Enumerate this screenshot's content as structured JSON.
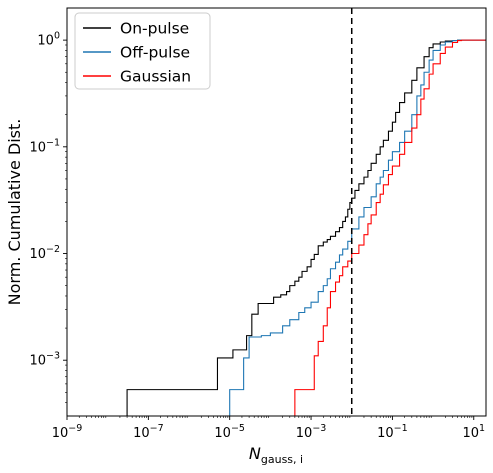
{
  "chart_data": {
    "type": "line",
    "ylabel": "Norm. Cumulative Dist.",
    "xlabel_main": "N",
    "xlabel_sub": "gauss, i",
    "xscale": "log",
    "yscale": "log",
    "xlim": [
      1e-09,
      20
    ],
    "ylim": [
      0.0003,
      2.0
    ],
    "x_ticks": [
      {
        "value": 1e-09,
        "base": "10",
        "exp": "−9"
      },
      {
        "value": 1e-07,
        "base": "10",
        "exp": "−7"
      },
      {
        "value": 1e-05,
        "base": "10",
        "exp": "−5"
      },
      {
        "value": 0.001,
        "base": "10",
        "exp": "−3"
      },
      {
        "value": 0.1,
        "base": "10",
        "exp": "−1"
      },
      {
        "value": 10,
        "base": "10",
        "exp": "1"
      }
    ],
    "y_ticks": [
      {
        "value": 0.001,
        "base": "10",
        "exp": "−3"
      },
      {
        "value": 0.01,
        "base": "10",
        "exp": "−2"
      },
      {
        "value": 0.1,
        "base": "10",
        "exp": "−1"
      },
      {
        "value": 1,
        "base": "10",
        "exp": "0"
      }
    ],
    "threshold_line": {
      "x": 0.01,
      "style": "dashed",
      "color": "#000000"
    },
    "legend": {
      "position": "top-left"
    },
    "series": [
      {
        "name": "On-pulse",
        "color": "#000000",
        "x": [
          3e-08,
          5e-06,
          1.2e-05,
          2.6e-05,
          3.5e-05,
          5e-05,
          8e-05,
          0.00012,
          0.00018,
          0.00025,
          0.0003,
          0.0004,
          0.0005,
          0.0006,
          0.0008,
          0.001,
          0.0012,
          0.0015,
          0.002,
          0.0025,
          0.003,
          0.004,
          0.005,
          0.006,
          0.007,
          0.008,
          0.009,
          0.01,
          0.012,
          0.015,
          0.02,
          0.025,
          0.03,
          0.04,
          0.05,
          0.06,
          0.08,
          0.1,
          0.12,
          0.15,
          0.2,
          0.3,
          0.4,
          0.6,
          0.8,
          1.0,
          1.5,
          2.0,
          3.0,
          4.0
        ],
        "y": [
          0.00053,
          0.00105,
          0.00125,
          0.0017,
          0.0027,
          0.0034,
          0.0034,
          0.0039,
          0.0041,
          0.0044,
          0.005,
          0.0055,
          0.006,
          0.0068,
          0.0075,
          0.0088,
          0.0098,
          0.0118,
          0.0128,
          0.0135,
          0.0145,
          0.016,
          0.0175,
          0.02,
          0.022,
          0.026,
          0.03,
          0.033,
          0.039,
          0.045,
          0.052,
          0.06,
          0.07,
          0.085,
          0.1,
          0.115,
          0.14,
          0.17,
          0.21,
          0.26,
          0.32,
          0.42,
          0.55,
          0.7,
          0.85,
          0.92,
          0.96,
          0.98,
          0.99,
          1.0
        ]
      },
      {
        "name": "Off-pulse",
        "color": "#1f77b4",
        "x": [
          1e-05,
          2.2e-05,
          3e-05,
          6e-05,
          0.0001,
          0.0002,
          0.0003,
          0.0005,
          0.0007,
          0.001,
          0.0015,
          0.002,
          0.0025,
          0.003,
          0.004,
          0.005,
          0.006,
          0.008,
          0.01,
          0.015,
          0.02,
          0.03,
          0.04,
          0.05,
          0.06,
          0.08,
          0.1,
          0.15,
          0.2,
          0.3,
          0.4,
          0.5,
          0.6,
          0.8,
          1.0,
          1.5,
          2.0,
          3.0,
          4.0
        ],
        "y": [
          0.00053,
          0.00105,
          0.00165,
          0.0017,
          0.0018,
          0.0021,
          0.0024,
          0.0028,
          0.0031,
          0.0035,
          0.0044,
          0.005,
          0.0058,
          0.0072,
          0.0083,
          0.0097,
          0.011,
          0.013,
          0.017,
          0.022,
          0.027,
          0.034,
          0.045,
          0.052,
          0.06,
          0.075,
          0.09,
          0.11,
          0.14,
          0.2,
          0.3,
          0.38,
          0.5,
          0.65,
          0.8,
          0.9,
          0.96,
          0.99,
          1.0
        ]
      },
      {
        "name": "Gaussian",
        "color": "#ff0000",
        "x": [
          0.0004,
          0.0012,
          0.0015,
          0.002,
          0.0025,
          0.003,
          0.004,
          0.005,
          0.006,
          0.008,
          0.01,
          0.015,
          0.02,
          0.025,
          0.03,
          0.04,
          0.05,
          0.06,
          0.08,
          0.1,
          0.15,
          0.2,
          0.3,
          0.4,
          0.5,
          0.6,
          0.8,
          1.0,
          1.5,
          2.0,
          3.0,
          4.0,
          5.0
        ],
        "y": [
          0.00053,
          0.0011,
          0.0015,
          0.0021,
          0.0031,
          0.0044,
          0.0054,
          0.0062,
          0.0075,
          0.0085,
          0.01,
          0.012,
          0.015,
          0.019,
          0.023,
          0.03,
          0.036,
          0.044,
          0.055,
          0.066,
          0.085,
          0.11,
          0.15,
          0.2,
          0.28,
          0.35,
          0.48,
          0.6,
          0.75,
          0.86,
          0.95,
          0.99,
          1.0
        ]
      }
    ]
  }
}
